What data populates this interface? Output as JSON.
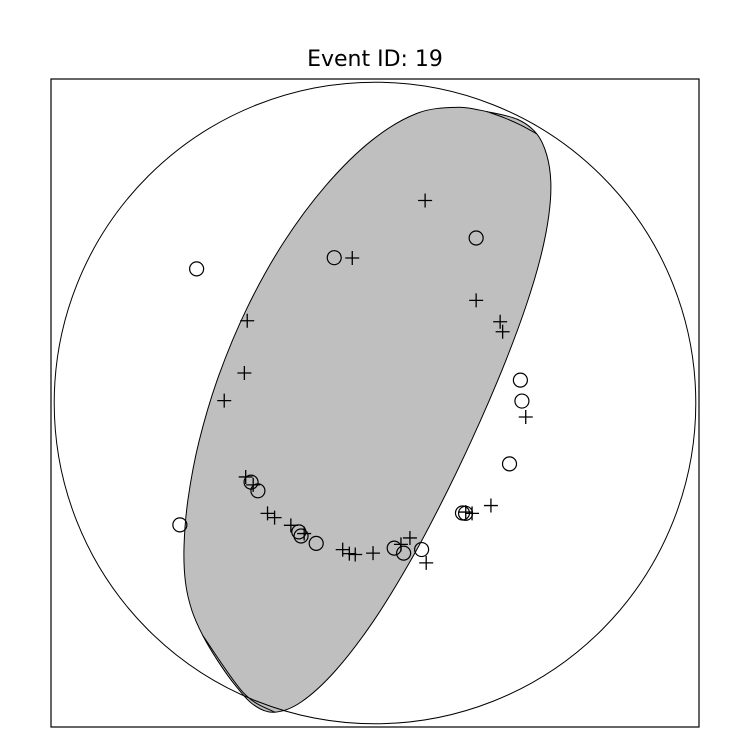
{
  "chart_data": {
    "type": "scatter",
    "title": "Event ID: 19",
    "xlabel": "",
    "ylabel": "",
    "xlim": [
      -1.01,
      1.01
    ],
    "ylim": [
      -1.01,
      1.01
    ],
    "grid": false,
    "legend": "none",
    "colors": {
      "background": "#ffffff",
      "compressional_fill": "#bfbfbf",
      "stroke": "#000000"
    },
    "compressional_region": [
      [
        0.3487,
        0.9084
      ],
      [
        0.4444,
        0.8841
      ],
      [
        0.5046,
        0.8389
      ],
      [
        0.5355,
        0.7729
      ],
      [
        0.5481,
        0.6877
      ],
      [
        0.5417,
        0.5837
      ],
      [
        0.517,
        0.4579
      ],
      [
        0.4728,
        0.3086
      ],
      [
        0.4088,
        0.1348
      ],
      [
        0.3265,
        -0.0599
      ],
      [
        0.2286,
        -0.2681
      ],
      [
        0.1169,
        -0.481
      ],
      [
        -0.004,
        -0.6786
      ],
      [
        -0.1239,
        -0.8351
      ],
      [
        -0.2296,
        -0.9317
      ],
      [
        -0.3123,
        -0.9639
      ],
      [
        -0.3766,
        -0.9421
      ],
      [
        -0.4342,
        -0.8818
      ],
      [
        -0.4894,
        -0.8048
      ],
      [
        -0.5368,
        -0.7249
      ],
      [
        -0.5713,
        -0.6452
      ],
      [
        -0.5909,
        -0.558
      ],
      [
        -0.5953,
        -0.4474
      ],
      [
        -0.583,
        -0.3006
      ],
      [
        -0.5485,
        -0.1191
      ],
      [
        -0.487,
        0.0854
      ],
      [
        -0.3985,
        0.2968
      ],
      [
        -0.2858,
        0.4991
      ],
      [
        -0.1532,
        0.6779
      ],
      [
        -0.0092,
        0.8193
      ],
      [
        0.1307,
        0.9029
      ],
      [
        0.2545,
        0.9217
      ],
      [
        0.3487,
        0.9084
      ]
    ],
    "upper_arc": [
      [
        0.3487,
        0.9084
      ],
      [
        0.402,
        0.8894
      ],
      [
        0.454,
        0.8664
      ],
      [
        0.5046,
        0.8389
      ]
    ],
    "lower_arc": [
      [
        -0.3123,
        -0.9639
      ],
      [
        -0.409,
        -0.9045
      ],
      [
        -0.5368,
        -0.7249
      ]
    ],
    "compressional_first_motions": [
      [
        0.1562,
        0.6313
      ],
      [
        -0.0709,
        0.4521
      ],
      [
        0.3153,
        0.3198
      ],
      [
        0.3901,
        0.2533
      ],
      [
        0.3979,
        0.2221
      ],
      [
        -0.3983,
        0.2563
      ],
      [
        -0.4072,
        0.0936
      ],
      [
        -0.47,
        0.0074
      ],
      [
        0.4699,
        -0.0437
      ],
      [
        -0.4031,
        -0.2305
      ],
      [
        -0.3797,
        -0.2553
      ],
      [
        -0.335,
        -0.344
      ],
      [
        -0.313,
        -0.3572
      ],
      [
        -0.2623,
        -0.3813
      ],
      [
        -0.2208,
        -0.407
      ],
      [
        -0.1007,
        -0.4571
      ],
      [
        -0.08,
        -0.4696
      ],
      [
        -0.0616,
        -0.4722
      ],
      [
        -0.0061,
        -0.468
      ],
      [
        0.0809,
        -0.4408
      ],
      [
        0.1089,
        -0.4207
      ],
      [
        0.1596,
        -0.4983
      ],
      [
        0.2829,
        -0.34
      ],
      [
        0.3026,
        -0.344
      ],
      [
        0.3614,
        -0.3197
      ]
    ],
    "dilatational_first_motions": [
      [
        0.3153,
        0.5143
      ],
      [
        -0.1271,
        0.453
      ],
      [
        -0.5561,
        0.4181
      ],
      [
        0.4532,
        0.0712
      ],
      [
        0.458,
        0.0061
      ],
      [
        0.4193,
        -0.1898
      ],
      [
        -0.3864,
        -0.2466
      ],
      [
        -0.365,
        -0.2737
      ],
      [
        -0.6083,
        -0.38
      ],
      [
        -0.2375,
        -0.4017
      ],
      [
        -0.2305,
        -0.4147
      ],
      [
        -0.1833,
        -0.4375
      ],
      [
        0.0598,
        -0.4524
      ],
      [
        0.0892,
        -0.468
      ],
      [
        0.1453,
        -0.4568
      ],
      [
        0.2823,
        -0.3439
      ],
      [
        0.2727,
        -0.343
      ]
    ]
  }
}
